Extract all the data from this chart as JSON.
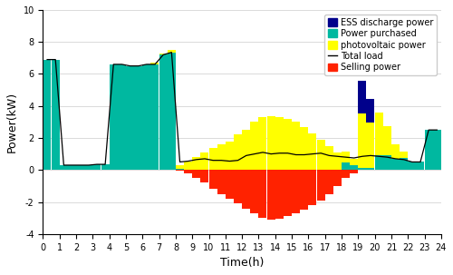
{
  "color_purchased": "#00B8A0",
  "color_pv": "#FFFF00",
  "color_ess": "#00008B",
  "color_selling": "#FF2200",
  "color_load": "#000000",
  "ylabel": "Power(kW)",
  "xlabel": "Time(h)",
  "ylim": [
    -4,
    10
  ],
  "xlim": [
    0,
    24
  ],
  "yticks_major": [
    -4,
    -2,
    0,
    2,
    4,
    6,
    8,
    10
  ],
  "yticks_minor": [
    -3,
    -1,
    1,
    3,
    5,
    7,
    9
  ],
  "legend_labels": [
    "ESS discharge power",
    "Power purchased",
    "photovoltaic power",
    "Total load",
    "Selling power"
  ],
  "dt": 0.5,
  "power_purchased": [
    6.9,
    6.9,
    0.3,
    0.3,
    0.3,
    0.3,
    0.35,
    0.35,
    6.6,
    6.6,
    6.5,
    6.5,
    6.6,
    6.6,
    7.2,
    7.35,
    0.05,
    0.0,
    0.0,
    0.0,
    0.0,
    0.0,
    0.0,
    0.0,
    0.0,
    0.0,
    0.0,
    0.0,
    0.0,
    0.0,
    0.0,
    0.0,
    0.0,
    0.0,
    0.0,
    0.0,
    0.45,
    0.3,
    0.15,
    0.15,
    0.9,
    0.95,
    0.7,
    0.75,
    0.5,
    0.5,
    2.5,
    2.5
  ],
  "photovoltaic_power": [
    0.0,
    0.0,
    0.0,
    0.0,
    0.0,
    0.0,
    0.0,
    0.0,
    0.0,
    0.0,
    0.0,
    0.0,
    0.0,
    0.1,
    0.1,
    0.15,
    0.25,
    0.5,
    0.8,
    1.1,
    1.4,
    1.6,
    1.8,
    2.2,
    2.5,
    3.0,
    3.3,
    3.35,
    3.3,
    3.2,
    3.0,
    2.7,
    2.3,
    1.9,
    1.5,
    1.1,
    0.7,
    0.4,
    3.4,
    2.8,
    2.7,
    1.8,
    0.9,
    0.4,
    0.0,
    0.0,
    0.0,
    0.0
  ],
  "ess_discharge": [
    0.0,
    0.0,
    0.0,
    0.0,
    0.0,
    0.0,
    0.0,
    0.0,
    0.0,
    0.0,
    0.0,
    0.0,
    0.0,
    0.0,
    0.0,
    0.0,
    0.0,
    0.0,
    0.0,
    0.0,
    0.0,
    0.0,
    0.0,
    0.0,
    0.0,
    0.0,
    0.0,
    0.0,
    0.0,
    0.0,
    0.0,
    0.0,
    0.0,
    0.0,
    0.0,
    0.0,
    0.0,
    0.0,
    2.0,
    1.5,
    0.0,
    0.0,
    0.0,
    0.0,
    0.0,
    0.0,
    0.0,
    0.0
  ],
  "selling_power": [
    0.0,
    0.0,
    0.0,
    0.0,
    0.0,
    0.0,
    0.0,
    0.0,
    0.0,
    0.0,
    0.0,
    0.0,
    0.0,
    0.0,
    0.0,
    0.0,
    -0.05,
    -0.2,
    -0.5,
    -0.8,
    -1.2,
    -1.5,
    -1.8,
    -2.1,
    -2.4,
    -2.7,
    -3.0,
    -3.1,
    -3.05,
    -2.9,
    -2.7,
    -2.5,
    -2.2,
    -1.9,
    -1.5,
    -1.0,
    -0.5,
    -0.2,
    0.0,
    0.0,
    0.0,
    0.0,
    0.0,
    0.0,
    0.0,
    0.0,
    0.0,
    0.0
  ],
  "total_load": [
    6.9,
    6.9,
    0.3,
    0.3,
    0.3,
    0.3,
    0.35,
    0.35,
    6.6,
    6.6,
    6.5,
    6.5,
    6.6,
    6.6,
    7.2,
    7.35,
    0.5,
    0.55,
    0.65,
    0.7,
    0.6,
    0.6,
    0.55,
    0.6,
    0.9,
    1.0,
    1.1,
    1.0,
    1.05,
    1.05,
    0.95,
    0.95,
    1.0,
    1.05,
    0.9,
    0.85,
    0.8,
    0.75,
    0.85,
    0.9,
    0.85,
    0.8,
    0.7,
    0.65,
    0.5,
    0.5,
    2.5,
    2.5
  ]
}
